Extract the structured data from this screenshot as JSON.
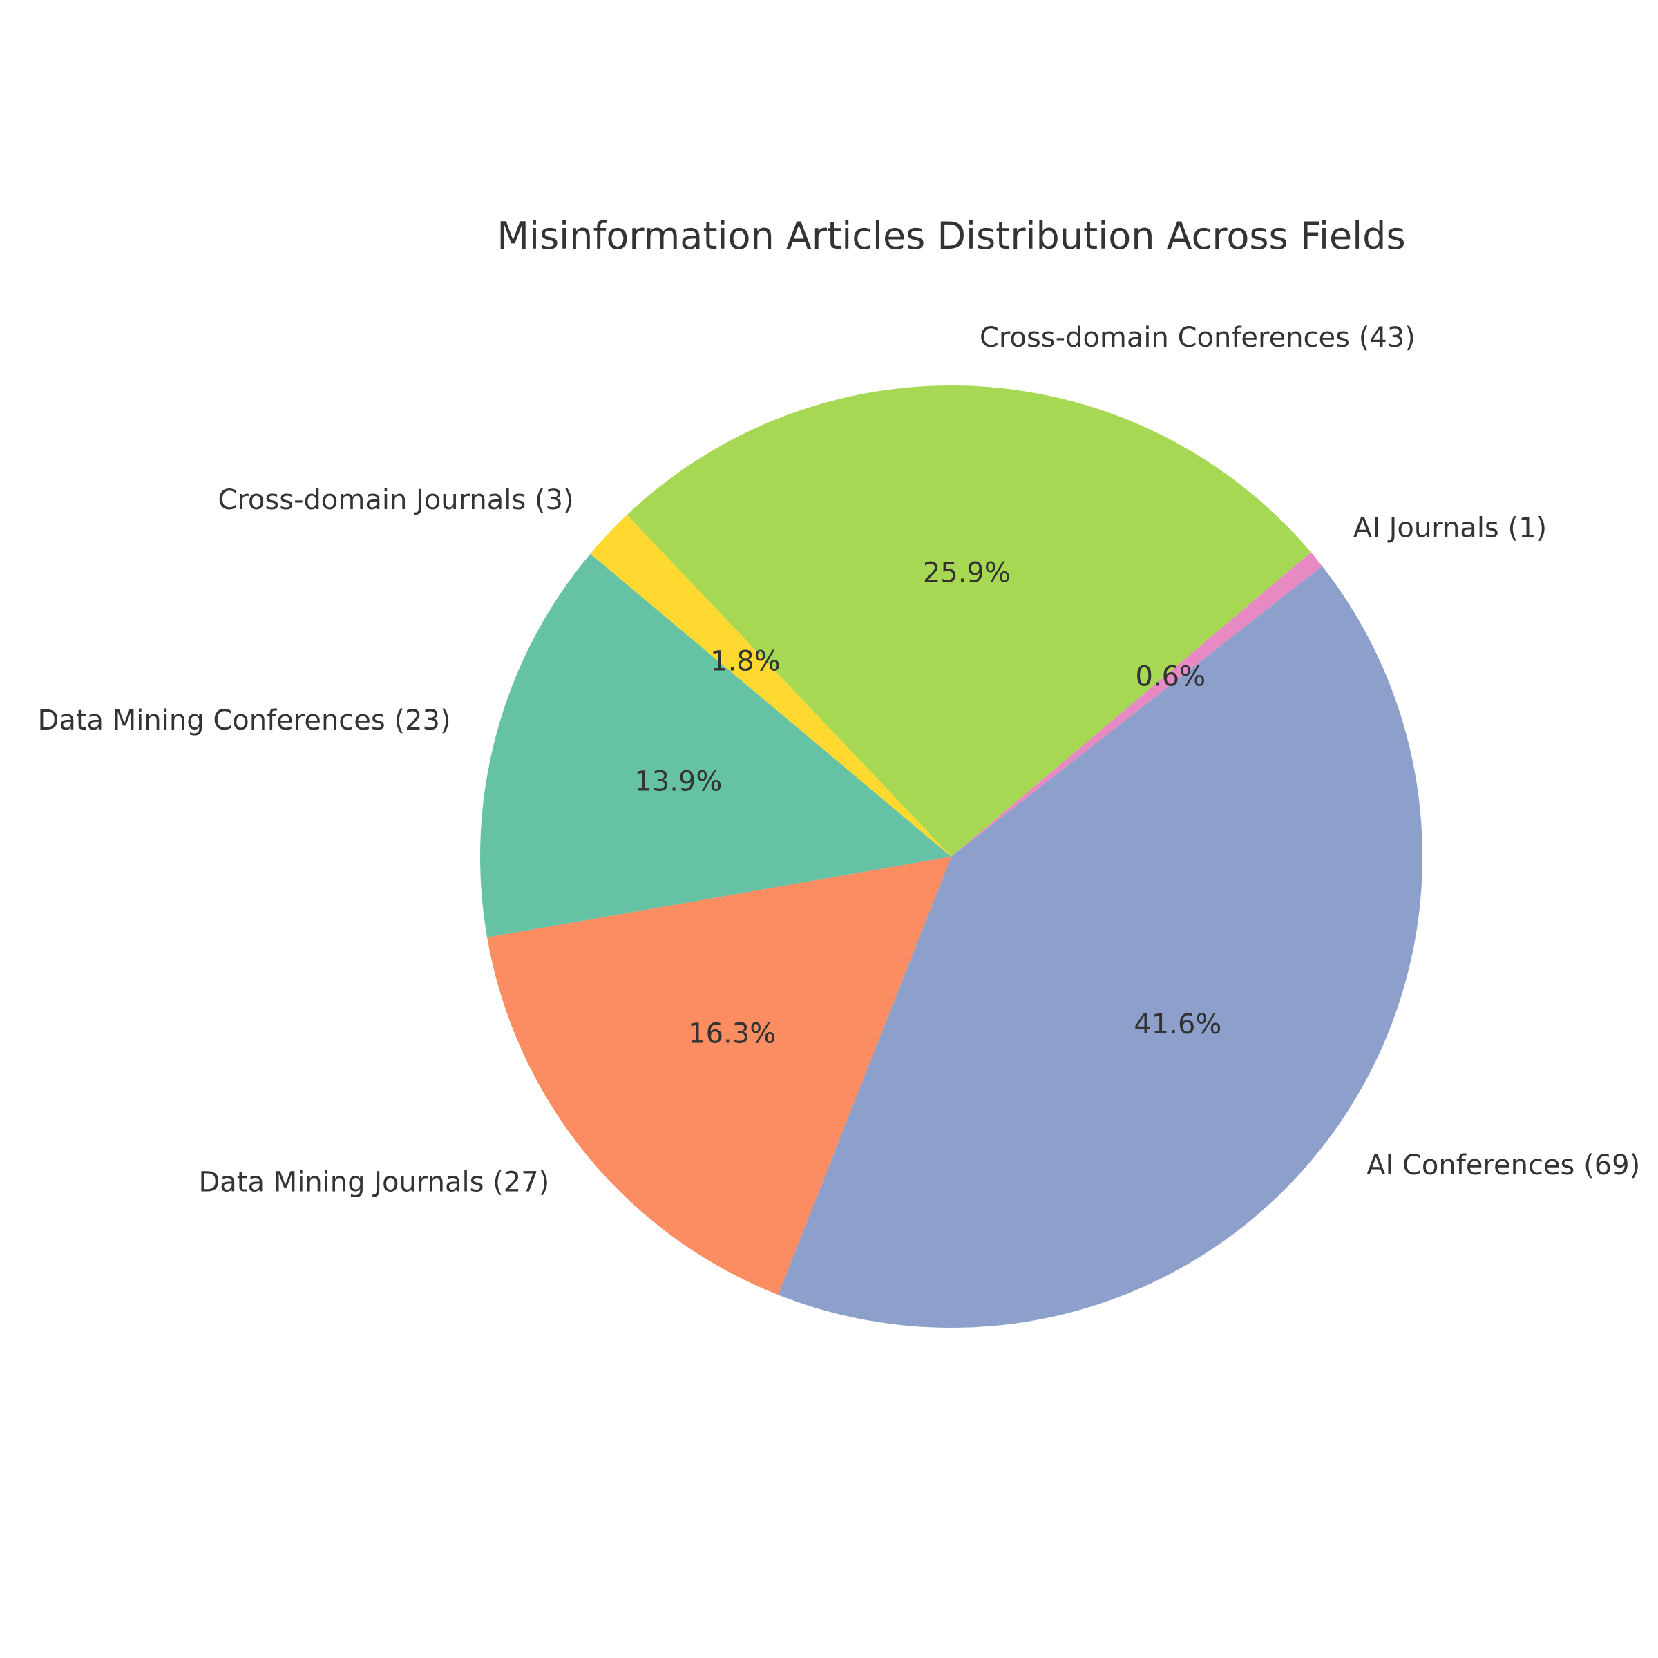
{
  "chart_data": {
    "type": "pie",
    "title": "Misinformation Articles Distribution Across Fields",
    "start_angle_deg": 140,
    "direction": "counterclockwise",
    "slices": [
      {
        "label": "Data Mining Conferences (23)",
        "value": 23,
        "pct_label": "13.9%",
        "color": "#66c2a5"
      },
      {
        "label": "Data Mining Journals (27)",
        "value": 27,
        "pct_label": "16.3%",
        "color": "#fc8d62"
      },
      {
        "label": "AI Conferences (69)",
        "value": 69,
        "pct_label": "41.6%",
        "color": "#8da0cb"
      },
      {
        "label": "AI Journals (1)",
        "value": 1,
        "pct_label": "0.6%",
        "color": "#e78ac3"
      },
      {
        "label": "Cross-domain Conferences (43)",
        "value": 43,
        "pct_label": "25.9%",
        "color": "#a6d854"
      },
      {
        "label": "Cross-domain Journals (3)",
        "value": 3,
        "pct_label": "1.8%",
        "color": "#ffd92f"
      }
    ]
  }
}
